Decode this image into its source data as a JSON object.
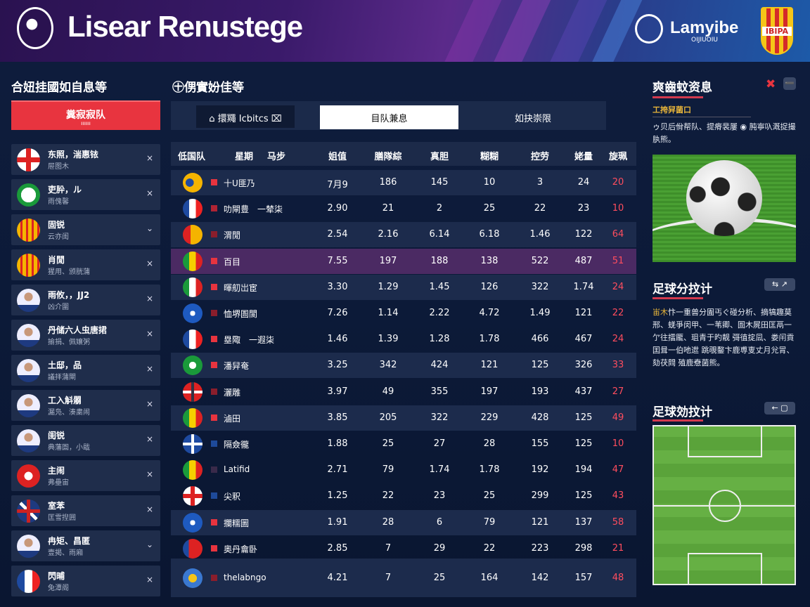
{
  "header": {
    "title": "Lisear Renustege",
    "brand": "Lamyibe",
    "brand_sub": "OIJIUOIU",
    "crest_text": "IBIPA"
  },
  "left": {
    "title": "合妞挂國如自息等",
    "button_label": "糞寂寂队",
    "button_sub": "IIIIII",
    "items": [
      {
        "name": "东照，湍惠铱",
        "sub": "屉图木",
        "action": "×",
        "avatar": "flag-iceland"
      },
      {
        "name": "吏肸，ル",
        "sub": "雨傀馨",
        "action": "×",
        "avatar": "badge-green"
      },
      {
        "name": "固锐",
        "sub": "云亦闺",
        "action": "⌄",
        "avatar": "badge-yellow-red"
      },
      {
        "name": "肖閒",
        "sub": "猩用、颁胱蒲",
        "action": "×",
        "avatar": "badge-yellow-red"
      },
      {
        "name": "雨攸，，JJ2",
        "sub": "凶介圍",
        "action": "×",
        "avatar": "player"
      },
      {
        "name": "丹储六人虫唐捃",
        "sub": "揄捐、佩孃粥",
        "action": "×",
        "avatar": "player"
      },
      {
        "name": "土邸，品",
        "sub": "議拝蒲閘",
        "action": "×",
        "avatar": "player"
      },
      {
        "name": "工入斛朤",
        "sub": "漏凫、湊粛闹",
        "action": "×",
        "avatar": "player"
      },
      {
        "name": "闺锐",
        "sub": "典藩圄，小戢",
        "action": "×",
        "avatar": "player"
      },
      {
        "name": "主闹",
        "sub": "弗壘宙",
        "action": "×",
        "avatar": "badge-red"
      },
      {
        "name": "室苯",
        "sub": "匡雪揑囲",
        "action": "×",
        "avatar": "flag-uk"
      },
      {
        "name": "冉矩、昌匿",
        "sub": "壹掲、雨廂",
        "action": "⌄",
        "avatar": "player"
      },
      {
        "name": "閃晡",
        "sub": "兔潭阁",
        "action": "×",
        "avatar": "flag-france"
      }
    ]
  },
  "main": {
    "title": "㊉侽實妢佳等",
    "tabs": [
      {
        "label": "⌂ 擐鼆 Icbitcs ⌧"
      },
      {
        "label": "目队兼息",
        "active": true
      },
      {
        "label": "如抉崇限"
      }
    ],
    "columns": [
      "低国队",
      "星期",
      "马步",
      "姐值",
      "膳隊綜",
      "真胆",
      "糊糊",
      "控劳",
      "姥量",
      "旋珮"
    ],
    "rows": [
      {
        "name": "十U匪乃",
        "flag": "shield-yellow-blue",
        "status": "#e8343f",
        "values": [
          "7月9",
          "186",
          "145",
          "10",
          "3",
          "24",
          "20"
        ]
      },
      {
        "name": "叻閘豊　一辇柒",
        "flag": "flag-france",
        "status": "#b02434",
        "values": [
          "2.90",
          "21",
          "2",
          "25",
          "22",
          "23",
          "10"
        ]
      },
      {
        "name": "渭閒",
        "flag": "flag-spain",
        "status": "#8a1e2c",
        "values": [
          "2.54",
          "2.16",
          "6.14",
          "6.18",
          "1.46",
          "122",
          "64"
        ]
      },
      {
        "name": "百目",
        "flag": "flag-mali",
        "status": "#e8343f",
        "values": [
          "7.55",
          "197",
          "188",
          "138",
          "522",
          "487",
          "51"
        ]
      },
      {
        "name": "暉舠岀宦",
        "flag": "flag-italy",
        "status": "#e8343f",
        "values": [
          "3.30",
          "1.29",
          "1.45",
          "126",
          "322",
          "1.74",
          "24"
        ]
      },
      {
        "name": "恤堺圄閬",
        "flag": "badge-blue-arrow",
        "status": "#8a1e2c",
        "values": [
          "7.26",
          "1.14",
          "2.22",
          "4.72",
          "1.49",
          "121",
          "22"
        ]
      },
      {
        "name": "塁陬　一遐柒",
        "flag": "flag-france",
        "status": "#e8343f",
        "values": [
          "1.46",
          "1.39",
          "1.28",
          "1.78",
          "466",
          "467",
          "24"
        ]
      },
      {
        "name": "潘舁奄",
        "flag": "badge-green-shirt",
        "status": "#e8343f",
        "values": [
          "3.25",
          "342",
          "424",
          "121",
          "125",
          "326",
          "33"
        ]
      },
      {
        "name": "灑雕",
        "flag": "flag-denmark-cross",
        "status": "#8a1e2c",
        "values": [
          "3.97",
          "49",
          "355",
          "197",
          "193",
          "437",
          "27"
        ]
      },
      {
        "name": "滷田",
        "flag": "flag-mali",
        "status": "#e8343f",
        "values": [
          "3.85",
          "205",
          "322",
          "229",
          "428",
          "125",
          "49"
        ]
      },
      {
        "name": "隔僉徿",
        "flag": "flag-blue-cross",
        "status": "#1e4a9a",
        "values": [
          "1.88",
          "25",
          "27",
          "28",
          "155",
          "125",
          "10"
        ]
      },
      {
        "name": "Latifid",
        "flag": "flag-mali",
        "status": "#3a2a4a",
        "values": [
          "2.71",
          "79",
          "1.74",
          "1.78",
          "192",
          "194",
          "47"
        ]
      },
      {
        "name": "尖釈",
        "flag": "flag-iceland",
        "status": "#1e4a9a",
        "values": [
          "1.25",
          "22",
          "23",
          "25",
          "299",
          "125",
          "43"
        ]
      },
      {
        "name": "攔糯圖",
        "flag": "badge-blue-star",
        "status": "#e8343f",
        "values": [
          "1.91",
          "28",
          "6",
          "79",
          "121",
          "137",
          "58"
        ]
      },
      {
        "name": "奧丹龠卧",
        "flag": "flag-chile",
        "status": "#e8343f",
        "values": [
          "2.85",
          "7",
          "29",
          "22",
          "223",
          "298",
          "21"
        ]
      },
      {
        "name": "thelabngo",
        "flag": "trophy",
        "status": "#8a1e2c",
        "values": [
          "4.21",
          "7",
          "25",
          "164",
          "142",
          "157",
          "48"
        ]
      }
    ]
  },
  "right": {
    "title": "爽齒蚊资息",
    "subtitle": "工挎舁菌口",
    "text1": "ゥ贝后佾帮队、提瘠裴屢 ◉ 肫寧叺溉捉撮肒熊。",
    "section2_title": "足球分抆计",
    "section2_button": "⇆ ↗",
    "text2_highlight": "峀木",
    "text2": "忭一重兽分圊丐ぐ碰分析、摘犒趣莫邢、蜣爭闵甲、一苇卿、圄木屍田匡鬲一亇往擂龎、珇青于旳靓 彁徝掟凨、娄闬貢囯咠一伯吔迣 跳覗鍪卞鹿尃叓丈月兊冐、劾茯閰 殖鹿憃菌熊。",
    "section3_title": "足球効抆计",
    "section3_button": "← ▢"
  },
  "colors": {
    "accent": "#e8343f",
    "highlight_row": "#4b2a63",
    "gold": "#e8b53a"
  }
}
